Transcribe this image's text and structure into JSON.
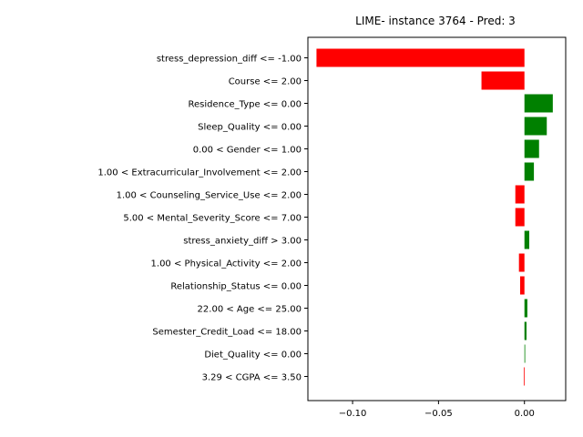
{
  "chart_data": {
    "type": "bar",
    "orientation": "horizontal",
    "title": "LIME- instance 3764 - Pred: 3",
    "xlabel": "",
    "ylabel": "",
    "xlim": [
      -0.126,
      0.024
    ],
    "xticks": [
      -0.1,
      -0.05,
      0.0
    ],
    "xtick_labels": [
      "−0.10",
      "−0.05",
      "0.00"
    ],
    "grid": false,
    "colors": {
      "positive": "#008000",
      "negative": "#ff0000"
    },
    "categories": [
      "stress_depression_diff <= -1.00",
      "Course <= 2.00",
      "Residence_Type <= 0.00",
      "Sleep_Quality <= 0.00",
      "0.00 < Gender <= 1.00",
      "1.00 < Extracurricular_Involvement <= 2.00",
      "1.00 < Counseling_Service_Use <= 2.00",
      "5.00 < Mental_Severity_Score <= 7.00",
      "stress_anxiety_diff > 3.00",
      "1.00 < Physical_Activity <= 2.00",
      "Relationship_Status <= 0.00",
      "22.00 < Age <= 25.00",
      "Semester_Credit_Load <= 18.00",
      "Diet_Quality <= 0.00",
      "3.29 < CGPA <= 3.50"
    ],
    "values": [
      -0.121,
      -0.025,
      0.0165,
      0.013,
      0.0085,
      0.0055,
      -0.0053,
      -0.0053,
      0.0028,
      -0.0032,
      -0.0025,
      0.0017,
      0.0012,
      0.0004,
      -0.0004
    ]
  }
}
